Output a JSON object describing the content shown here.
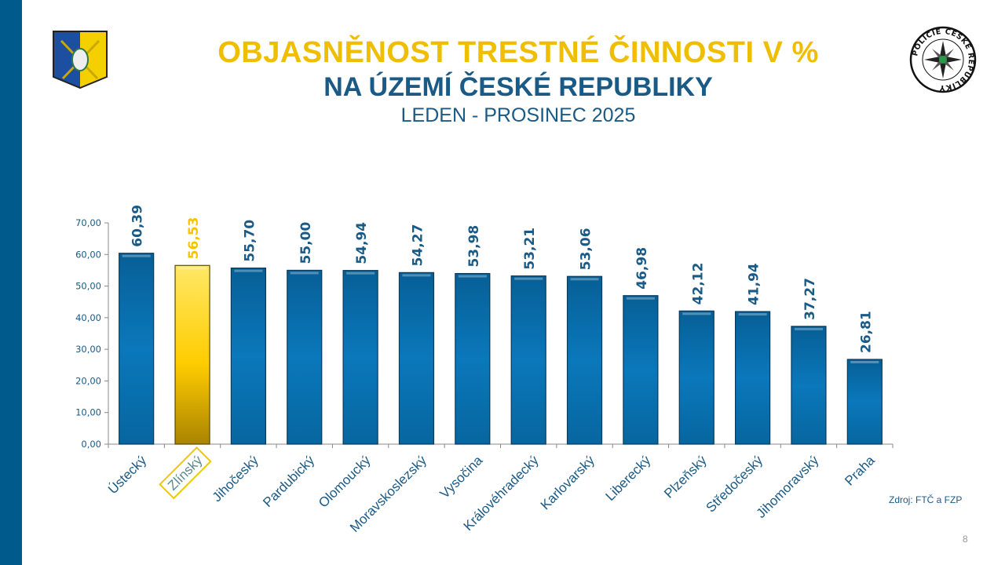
{
  "header": {
    "title": "OBJASNĚNOST  TRESTNÉ ČINNOSTI  V %",
    "subtitle": "NA ÚZEMÍ  ČESKÉ REPUBLIKY",
    "period": "LEDEN - PROSINEC 2025",
    "police_logo_text": "POLICIE ČESKÉ REPUBLIKY"
  },
  "footer": {
    "source": "Zdroj:  FTČ  a FZP",
    "page_number": "8"
  },
  "colors": {
    "bar": "#0a6fae",
    "highlight": "#f5c400",
    "text": "#1a5a86",
    "sidebar": "#005a8c"
  },
  "chart_data": {
    "type": "bar",
    "categories": [
      "Ústecký",
      "Zlínský",
      "Jihočeský",
      "Pardubický",
      "Olomoucký",
      "Moravskoslezský",
      "Vysočina",
      "Královéhradecký",
      "Karlovarský",
      "Liberecký",
      "Plzeňský",
      "Středočeský",
      "Jihomoravský",
      "Praha"
    ],
    "values": [
      60.39,
      56.53,
      55.7,
      55.0,
      54.94,
      54.27,
      53.98,
      53.21,
      53.06,
      46.98,
      42.12,
      41.94,
      37.27,
      26.81
    ],
    "value_labels": [
      "60,39",
      "56,53",
      "55,70",
      "55,00",
      "54,94",
      "54,27",
      "53,98",
      "53,21",
      "53,06",
      "46,98",
      "42,12",
      "41,94",
      "37,27",
      "26,81"
    ],
    "highlight": "Zlínský",
    "ylim": [
      0,
      70
    ],
    "yticks": [
      "0,00",
      "10,00",
      "20,00",
      "30,00",
      "40,00",
      "50,00",
      "60,00",
      "70,00"
    ],
    "grid": false,
    "title": "",
    "xlabel": "",
    "ylabel": ""
  }
}
